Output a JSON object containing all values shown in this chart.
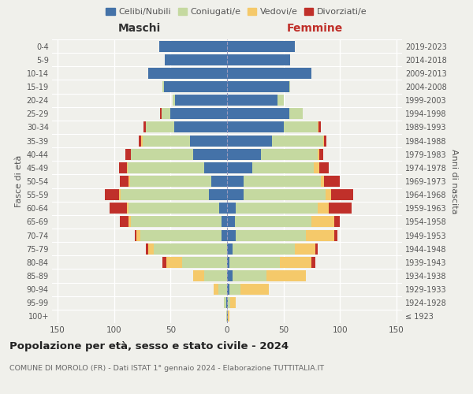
{
  "age_groups": [
    "100+",
    "95-99",
    "90-94",
    "85-89",
    "80-84",
    "75-79",
    "70-74",
    "65-69",
    "60-64",
    "55-59",
    "50-54",
    "45-49",
    "40-44",
    "35-39",
    "30-34",
    "25-29",
    "20-24",
    "15-19",
    "10-14",
    "5-9",
    "0-4"
  ],
  "birth_years": [
    "≤ 1923",
    "1924-1928",
    "1929-1933",
    "1934-1938",
    "1939-1943",
    "1944-1948",
    "1949-1953",
    "1954-1958",
    "1959-1963",
    "1964-1968",
    "1969-1973",
    "1974-1978",
    "1979-1983",
    "1984-1988",
    "1989-1993",
    "1994-1998",
    "1999-2003",
    "2004-2008",
    "2009-2013",
    "2014-2018",
    "2019-2023"
  ],
  "male": {
    "celibe": [
      0,
      1,
      0,
      0,
      0,
      0,
      5,
      5,
      7,
      16,
      14,
      20,
      30,
      33,
      47,
      50,
      46,
      56,
      70,
      55,
      60
    ],
    "coniugato": [
      1,
      2,
      8,
      20,
      40,
      65,
      72,
      80,
      80,
      78,
      72,
      68,
      55,
      42,
      25,
      8,
      2,
      1,
      0,
      0,
      0
    ],
    "vedovo": [
      0,
      0,
      4,
      10,
      14,
      5,
      3,
      2,
      2,
      2,
      1,
      1,
      0,
      1,
      0,
      0,
      0,
      0,
      0,
      0,
      0
    ],
    "divorziato": [
      0,
      0,
      0,
      0,
      3,
      2,
      2,
      8,
      15,
      12,
      8,
      7,
      5,
      2,
      2,
      1,
      0,
      0,
      0,
      0,
      0
    ]
  },
  "female": {
    "nubile": [
      1,
      1,
      2,
      5,
      2,
      5,
      8,
      7,
      8,
      15,
      15,
      22,
      30,
      40,
      50,
      55,
      45,
      55,
      75,
      56,
      60
    ],
    "coniugata": [
      0,
      2,
      10,
      30,
      45,
      55,
      62,
      68,
      72,
      72,
      68,
      55,
      50,
      45,
      30,
      12,
      5,
      1,
      0,
      0,
      0
    ],
    "vedova": [
      1,
      5,
      25,
      35,
      28,
      18,
      25,
      20,
      10,
      5,
      3,
      5,
      2,
      1,
      1,
      0,
      0,
      0,
      0,
      0,
      0
    ],
    "divorziata": [
      0,
      0,
      0,
      0,
      3,
      2,
      3,
      5,
      20,
      20,
      14,
      8,
      3,
      2,
      2,
      0,
      0,
      0,
      0,
      0,
      0
    ]
  },
  "colors": {
    "celibe": "#4472a8",
    "coniugato": "#c5d9a0",
    "vedovo": "#f5c96a",
    "divorziato": "#c0302a"
  },
  "xlim": 155,
  "title": "Popolazione per età, sesso e stato civile - 2024",
  "subtitle": "COMUNE DI MOROLO (FR) - Dati ISTAT 1° gennaio 2024 - Elaborazione TUTTITALIA.IT",
  "ylabel_left": "Fasce di età",
  "ylabel_right": "Anni di nascita",
  "xlabel_left": "Maschi",
  "xlabel_right": "Femmine",
  "legend_labels": [
    "Celibi/Nubili",
    "Coniugati/e",
    "Vedovi/e",
    "Divorziati/e"
  ],
  "background_color": "#f0f0eb"
}
